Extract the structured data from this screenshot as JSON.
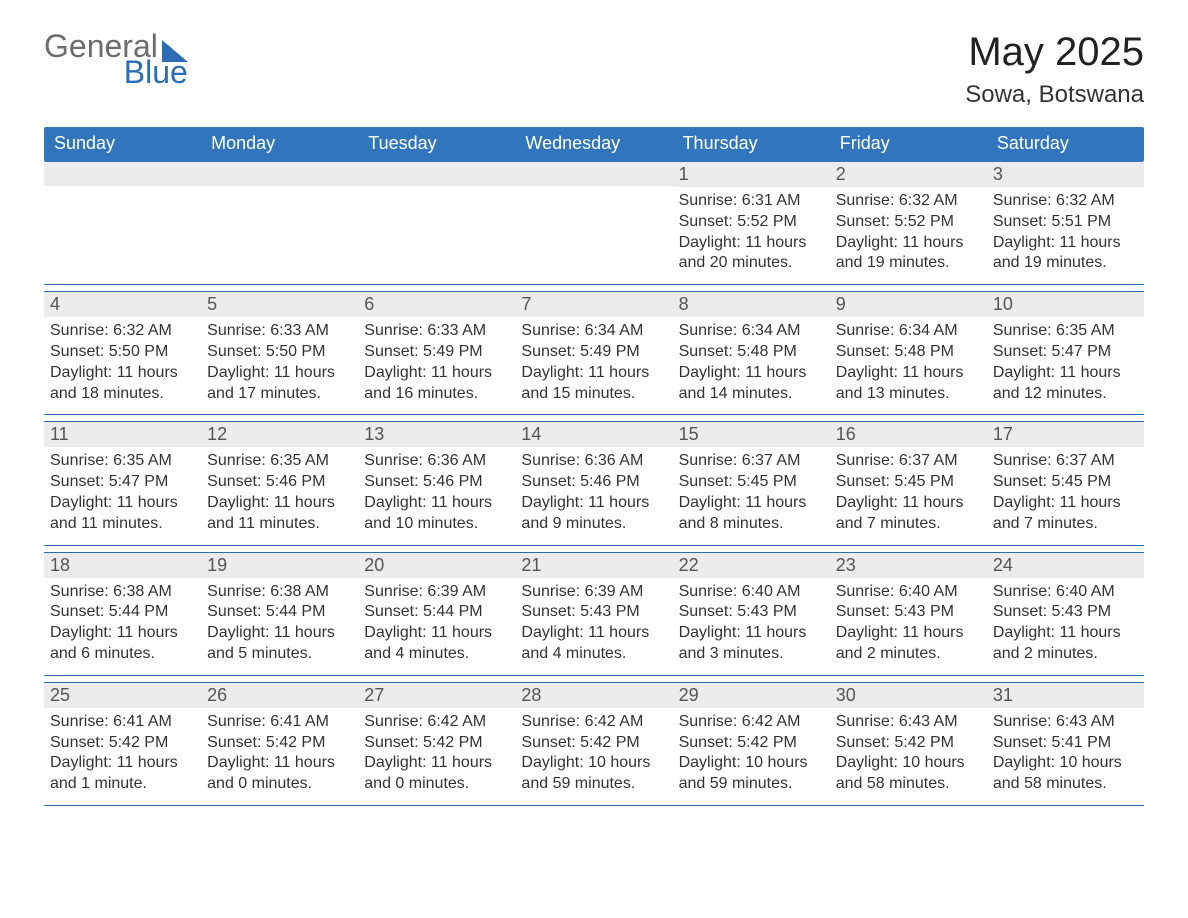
{
  "logo": {
    "general": "General",
    "blue": "Blue"
  },
  "title": "May 2025",
  "subtitle": "Sowa, Botswana",
  "colors": {
    "header_bg": "#3176bd",
    "header_text": "#ffffff",
    "date_bg": "#ececec",
    "border": "#2a6db5",
    "logo_blue": "#2a6db5",
    "logo_gray": "#6c6c6c",
    "text": "#333333"
  },
  "day_headers": [
    "Sunday",
    "Monday",
    "Tuesday",
    "Wednesday",
    "Thursday",
    "Friday",
    "Saturday"
  ],
  "weeks": [
    [
      {
        "date": "",
        "sunrise": "",
        "sunset": "",
        "daylight": ""
      },
      {
        "date": "",
        "sunrise": "",
        "sunset": "",
        "daylight": ""
      },
      {
        "date": "",
        "sunrise": "",
        "sunset": "",
        "daylight": ""
      },
      {
        "date": "",
        "sunrise": "",
        "sunset": "",
        "daylight": ""
      },
      {
        "date": "1",
        "sunrise": "Sunrise: 6:31 AM",
        "sunset": "Sunset: 5:52 PM",
        "daylight": "Daylight: 11 hours and 20 minutes."
      },
      {
        "date": "2",
        "sunrise": "Sunrise: 6:32 AM",
        "sunset": "Sunset: 5:52 PM",
        "daylight": "Daylight: 11 hours and 19 minutes."
      },
      {
        "date": "3",
        "sunrise": "Sunrise: 6:32 AM",
        "sunset": "Sunset: 5:51 PM",
        "daylight": "Daylight: 11 hours and 19 minutes."
      }
    ],
    [
      {
        "date": "4",
        "sunrise": "Sunrise: 6:32 AM",
        "sunset": "Sunset: 5:50 PM",
        "daylight": "Daylight: 11 hours and 18 minutes."
      },
      {
        "date": "5",
        "sunrise": "Sunrise: 6:33 AM",
        "sunset": "Sunset: 5:50 PM",
        "daylight": "Daylight: 11 hours and 17 minutes."
      },
      {
        "date": "6",
        "sunrise": "Sunrise: 6:33 AM",
        "sunset": "Sunset: 5:49 PM",
        "daylight": "Daylight: 11 hours and 16 minutes."
      },
      {
        "date": "7",
        "sunrise": "Sunrise: 6:34 AM",
        "sunset": "Sunset: 5:49 PM",
        "daylight": "Daylight: 11 hours and 15 minutes."
      },
      {
        "date": "8",
        "sunrise": "Sunrise: 6:34 AM",
        "sunset": "Sunset: 5:48 PM",
        "daylight": "Daylight: 11 hours and 14 minutes."
      },
      {
        "date": "9",
        "sunrise": "Sunrise: 6:34 AM",
        "sunset": "Sunset: 5:48 PM",
        "daylight": "Daylight: 11 hours and 13 minutes."
      },
      {
        "date": "10",
        "sunrise": "Sunrise: 6:35 AM",
        "sunset": "Sunset: 5:47 PM",
        "daylight": "Daylight: 11 hours and 12 minutes."
      }
    ],
    [
      {
        "date": "11",
        "sunrise": "Sunrise: 6:35 AM",
        "sunset": "Sunset: 5:47 PM",
        "daylight": "Daylight: 11 hours and 11 minutes."
      },
      {
        "date": "12",
        "sunrise": "Sunrise: 6:35 AM",
        "sunset": "Sunset: 5:46 PM",
        "daylight": "Daylight: 11 hours and 11 minutes."
      },
      {
        "date": "13",
        "sunrise": "Sunrise: 6:36 AM",
        "sunset": "Sunset: 5:46 PM",
        "daylight": "Daylight: 11 hours and 10 minutes."
      },
      {
        "date": "14",
        "sunrise": "Sunrise: 6:36 AM",
        "sunset": "Sunset: 5:46 PM",
        "daylight": "Daylight: 11 hours and 9 minutes."
      },
      {
        "date": "15",
        "sunrise": "Sunrise: 6:37 AM",
        "sunset": "Sunset: 5:45 PM",
        "daylight": "Daylight: 11 hours and 8 minutes."
      },
      {
        "date": "16",
        "sunrise": "Sunrise: 6:37 AM",
        "sunset": "Sunset: 5:45 PM",
        "daylight": "Daylight: 11 hours and 7 minutes."
      },
      {
        "date": "17",
        "sunrise": "Sunrise: 6:37 AM",
        "sunset": "Sunset: 5:45 PM",
        "daylight": "Daylight: 11 hours and 7 minutes."
      }
    ],
    [
      {
        "date": "18",
        "sunrise": "Sunrise: 6:38 AM",
        "sunset": "Sunset: 5:44 PM",
        "daylight": "Daylight: 11 hours and 6 minutes."
      },
      {
        "date": "19",
        "sunrise": "Sunrise: 6:38 AM",
        "sunset": "Sunset: 5:44 PM",
        "daylight": "Daylight: 11 hours and 5 minutes."
      },
      {
        "date": "20",
        "sunrise": "Sunrise: 6:39 AM",
        "sunset": "Sunset: 5:44 PM",
        "daylight": "Daylight: 11 hours and 4 minutes."
      },
      {
        "date": "21",
        "sunrise": "Sunrise: 6:39 AM",
        "sunset": "Sunset: 5:43 PM",
        "daylight": "Daylight: 11 hours and 4 minutes."
      },
      {
        "date": "22",
        "sunrise": "Sunrise: 6:40 AM",
        "sunset": "Sunset: 5:43 PM",
        "daylight": "Daylight: 11 hours and 3 minutes."
      },
      {
        "date": "23",
        "sunrise": "Sunrise: 6:40 AM",
        "sunset": "Sunset: 5:43 PM",
        "daylight": "Daylight: 11 hours and 2 minutes."
      },
      {
        "date": "24",
        "sunrise": "Sunrise: 6:40 AM",
        "sunset": "Sunset: 5:43 PM",
        "daylight": "Daylight: 11 hours and 2 minutes."
      }
    ],
    [
      {
        "date": "25",
        "sunrise": "Sunrise: 6:41 AM",
        "sunset": "Sunset: 5:42 PM",
        "daylight": "Daylight: 11 hours and 1 minute."
      },
      {
        "date": "26",
        "sunrise": "Sunrise: 6:41 AM",
        "sunset": "Sunset: 5:42 PM",
        "daylight": "Daylight: 11 hours and 0 minutes."
      },
      {
        "date": "27",
        "sunrise": "Sunrise: 6:42 AM",
        "sunset": "Sunset: 5:42 PM",
        "daylight": "Daylight: 11 hours and 0 minutes."
      },
      {
        "date": "28",
        "sunrise": "Sunrise: 6:42 AM",
        "sunset": "Sunset: 5:42 PM",
        "daylight": "Daylight: 10 hours and 59 minutes."
      },
      {
        "date": "29",
        "sunrise": "Sunrise: 6:42 AM",
        "sunset": "Sunset: 5:42 PM",
        "daylight": "Daylight: 10 hours and 59 minutes."
      },
      {
        "date": "30",
        "sunrise": "Sunrise: 6:43 AM",
        "sunset": "Sunset: 5:42 PM",
        "daylight": "Daylight: 10 hours and 58 minutes."
      },
      {
        "date": "31",
        "sunrise": "Sunrise: 6:43 AM",
        "sunset": "Sunset: 5:41 PM",
        "daylight": "Daylight: 10 hours and 58 minutes."
      }
    ]
  ]
}
